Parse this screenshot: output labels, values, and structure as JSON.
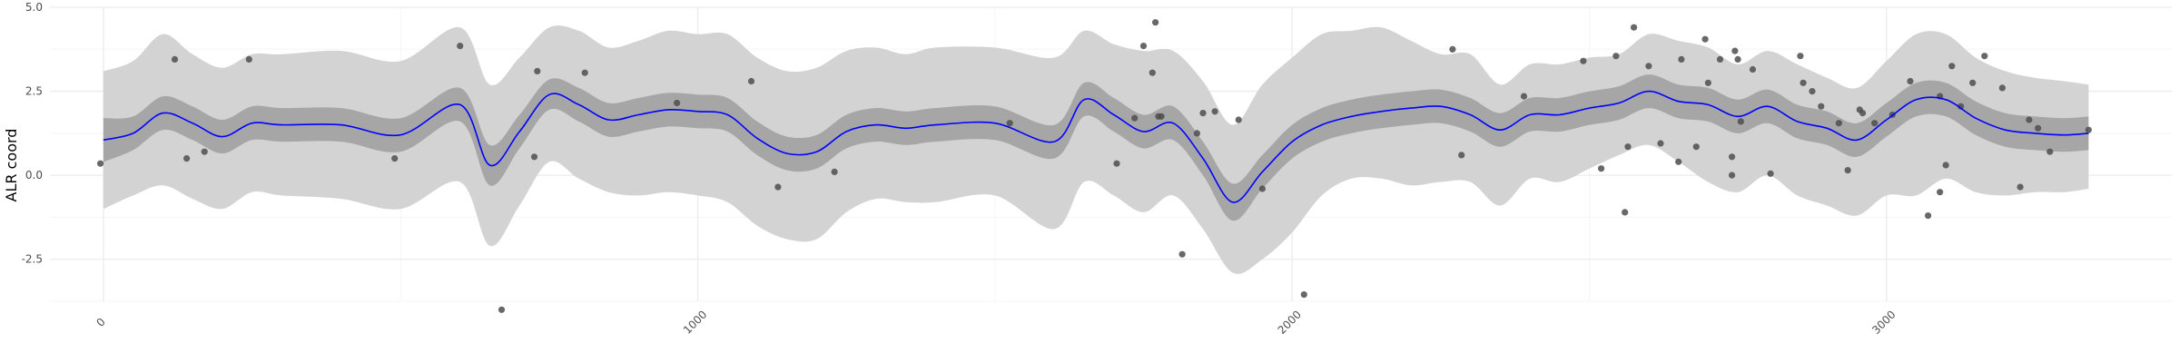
{
  "chart_data": {
    "type": "line",
    "title": "",
    "xlabel": "",
    "ylabel": "ALR coord",
    "xlim": [
      -90,
      3480
    ],
    "ylim": [
      -3.75,
      5.0
    ],
    "x_ticks": [
      0,
      1000,
      2000,
      3000
    ],
    "x_tick_labels": [
      "0",
      "1000",
      "2000",
      "3000"
    ],
    "x_minor_ticks": [
      500,
      1500,
      2500
    ],
    "y_ticks": [
      -2.5,
      0.0,
      2.5,
      5.0
    ],
    "y_tick_labels": [
      "-2.5",
      "0.0",
      "2.5",
      "5.0"
    ],
    "y_minor_ticks": [
      -3.75,
      -1.25,
      1.25,
      3.75
    ],
    "grid": true,
    "colors": {
      "line": "#0000ff",
      "inner_band": "#a6a6a6",
      "outer_band": "#d3d3d3",
      "points": "#4d4d4d",
      "grid_major": "#ebebeb",
      "grid_minor": "#f5f5f5"
    },
    "series": [
      {
        "kind": "mean-line",
        "x": [
          0,
          50,
          100,
          150,
          200,
          250,
          300,
          400,
          500,
          600,
          650,
          700,
          750,
          800,
          850,
          900,
          950,
          1000,
          1050,
          1100,
          1150,
          1200,
          1250,
          1300,
          1350,
          1400,
          1500,
          1600,
          1650,
          1700,
          1750,
          1800,
          1850,
          1900,
          1950,
          2000,
          2050,
          2100,
          2150,
          2200,
          2250,
          2300,
          2350,
          2400,
          2450,
          2500,
          2550,
          2600,
          2650,
          2700,
          2750,
          2800,
          2850,
          2900,
          2950,
          3000,
          3050,
          3100,
          3150,
          3200,
          3250,
          3300,
          3340
        ],
        "y": [
          1.05,
          1.25,
          1.85,
          1.55,
          1.15,
          1.55,
          1.5,
          1.5,
          1.2,
          2.1,
          0.3,
          1.3,
          2.4,
          2.1,
          1.65,
          1.8,
          1.95,
          1.9,
          1.8,
          1.1,
          0.65,
          0.7,
          1.3,
          1.5,
          1.4,
          1.5,
          1.55,
          1.0,
          2.25,
          1.8,
          1.3,
          1.55,
          0.5,
          -0.8,
          0.1,
          1.0,
          1.5,
          1.75,
          1.9,
          2.0,
          2.05,
          1.8,
          1.35,
          1.8,
          1.8,
          2.0,
          2.15,
          2.5,
          2.2,
          2.1,
          1.75,
          2.05,
          1.6,
          1.4,
          1.05,
          1.65,
          2.25,
          2.25,
          1.7,
          1.35,
          1.25,
          1.2,
          1.25
        ]
      },
      {
        "kind": "inner-band",
        "x": [
          0,
          50,
          100,
          150,
          200,
          250,
          300,
          400,
          500,
          600,
          650,
          700,
          750,
          800,
          850,
          900,
          950,
          1000,
          1050,
          1100,
          1150,
          1200,
          1250,
          1300,
          1350,
          1400,
          1500,
          1600,
          1650,
          1700,
          1750,
          1800,
          1850,
          1900,
          1950,
          2000,
          2050,
          2100,
          2150,
          2200,
          2250,
          2300,
          2350,
          2400,
          2450,
          2500,
          2550,
          2600,
          2650,
          2700,
          2750,
          2800,
          2850,
          2900,
          2950,
          3000,
          3050,
          3100,
          3150,
          3200,
          3250,
          3300,
          3340
        ],
        "lower": [
          0.4,
          0.75,
          1.35,
          1.05,
          0.65,
          1.05,
          1.0,
          1.0,
          0.7,
          1.6,
          -0.3,
          0.8,
          1.95,
          1.6,
          1.15,
          1.3,
          1.45,
          1.4,
          1.3,
          0.6,
          0.15,
          0.2,
          0.8,
          1.0,
          0.9,
          1.0,
          1.05,
          0.5,
          1.75,
          1.3,
          0.8,
          1.05,
          0.0,
          -1.35,
          -0.4,
          0.5,
          1.0,
          1.25,
          1.4,
          1.5,
          1.55,
          1.3,
          0.85,
          1.3,
          1.3,
          1.5,
          1.65,
          2.0,
          1.7,
          1.6,
          1.25,
          1.55,
          1.1,
          0.9,
          0.55,
          1.15,
          1.75,
          1.75,
          1.2,
          0.85,
          0.75,
          0.7,
          0.75
        ],
        "upper": [
          1.7,
          1.75,
          2.35,
          2.05,
          1.65,
          2.05,
          2.0,
          2.0,
          1.7,
          2.6,
          0.9,
          1.8,
          2.85,
          2.6,
          2.15,
          2.3,
          2.45,
          2.4,
          2.3,
          1.6,
          1.15,
          1.2,
          1.8,
          2.0,
          1.9,
          2.0,
          2.05,
          1.5,
          2.75,
          2.3,
          1.8,
          2.05,
          1.0,
          -0.25,
          0.6,
          1.5,
          2.0,
          2.25,
          2.4,
          2.5,
          2.55,
          2.3,
          1.85,
          2.3,
          2.3,
          2.5,
          2.65,
          3.0,
          2.7,
          2.6,
          2.25,
          2.55,
          2.1,
          1.9,
          1.55,
          2.15,
          2.75,
          2.75,
          2.2,
          1.85,
          1.75,
          1.7,
          1.75
        ]
      },
      {
        "kind": "outer-band",
        "x": [
          0,
          50,
          100,
          150,
          200,
          250,
          300,
          400,
          500,
          600,
          650,
          700,
          750,
          800,
          850,
          900,
          950,
          1000,
          1050,
          1100,
          1150,
          1200,
          1250,
          1300,
          1350,
          1400,
          1500,
          1600,
          1650,
          1700,
          1750,
          1800,
          1850,
          1900,
          1950,
          2000,
          2050,
          2100,
          2150,
          2200,
          2250,
          2300,
          2350,
          2400,
          2450,
          2500,
          2550,
          2600,
          2650,
          2700,
          2750,
          2800,
          2850,
          2900,
          2950,
          3000,
          3050,
          3100,
          3150,
          3200,
          3250,
          3300,
          3340
        ],
        "lower": [
          -1.0,
          -0.6,
          -0.3,
          -0.7,
          -1.0,
          -0.5,
          -0.6,
          -0.7,
          -1.0,
          -0.2,
          -2.1,
          -0.9,
          0.4,
          -0.1,
          -0.5,
          -0.6,
          -0.5,
          -0.6,
          -0.8,
          -1.5,
          -1.9,
          -1.9,
          -1.1,
          -0.7,
          -0.8,
          -0.8,
          -0.6,
          -1.6,
          -0.2,
          -0.6,
          -1.1,
          -0.6,
          -1.6,
          -2.9,
          -2.5,
          -1.7,
          -0.6,
          -0.1,
          -0.1,
          -0.3,
          -0.2,
          -0.2,
          -0.9,
          -0.1,
          -0.2,
          0.2,
          0.6,
          0.9,
          0.4,
          -0.2,
          -0.5,
          0.0,
          -0.6,
          -0.9,
          -1.2,
          -0.6,
          -0.6,
          -0.1,
          -0.5,
          -0.6,
          -0.5,
          -0.5,
          -0.4
        ],
        "upper": [
          3.1,
          3.4,
          4.2,
          3.6,
          3.2,
          3.6,
          3.6,
          3.7,
          3.4,
          4.4,
          2.7,
          3.5,
          4.4,
          4.3,
          3.8,
          4.0,
          4.3,
          4.2,
          4.2,
          3.5,
          3.1,
          3.2,
          3.7,
          3.8,
          3.6,
          3.8,
          3.8,
          3.5,
          4.3,
          3.9,
          3.7,
          3.7,
          2.8,
          1.5,
          2.7,
          3.5,
          4.2,
          4.3,
          4.4,
          4.0,
          3.6,
          3.6,
          2.7,
          3.3,
          3.3,
          3.5,
          3.6,
          4.2,
          4.0,
          3.8,
          3.3,
          3.7,
          3.3,
          2.9,
          2.6,
          3.4,
          4.2,
          4.2,
          3.5,
          3.1,
          2.9,
          2.8,
          2.7
        ]
      },
      {
        "kind": "observations",
        "x": [
          -5,
          120,
          140,
          170,
          245,
          490,
          600,
          670,
          725,
          730,
          810,
          965,
          1090,
          1135,
          1230,
          1525,
          1705,
          1735,
          1750,
          1765,
          1770,
          1775,
          1780,
          1815,
          1840,
          1850,
          1870,
          1910,
          1950,
          2020,
          2270,
          2285,
          2390,
          2490,
          2520,
          2545,
          2560,
          2565,
          2575,
          2600,
          2620,
          2650,
          2655,
          2680,
          2695,
          2700,
          2720,
          2740,
          2740,
          2745,
          2750,
          2755,
          2775,
          2805,
          2855,
          2860,
          2875,
          2890,
          2920,
          2935,
          2955,
          2960,
          2980,
          3010,
          3040,
          3070,
          3090,
          3090,
          3100,
          3110,
          3125,
          3145,
          3165,
          3195,
          3225,
          3240,
          3255,
          3275,
          3340
        ],
        "y": [
          0.35,
          3.45,
          0.5,
          0.7,
          3.45,
          0.5,
          3.85,
          -4.0,
          0.55,
          3.1,
          3.05,
          2.15,
          2.8,
          -0.35,
          0.1,
          1.55,
          0.35,
          1.7,
          3.85,
          3.05,
          4.55,
          1.75,
          1.75,
          -2.35,
          1.25,
          1.85,
          1.9,
          1.65,
          -0.4,
          -3.55,
          3.75,
          0.6,
          2.35,
          3.4,
          0.2,
          3.55,
          -1.1,
          0.85,
          4.4,
          3.25,
          0.95,
          0.4,
          3.45,
          0.85,
          4.05,
          2.75,
          3.45,
          0.55,
          0.0,
          3.7,
          3.45,
          1.6,
          3.15,
          0.05,
          3.55,
          2.75,
          2.5,
          2.05,
          1.55,
          0.15,
          1.95,
          1.85,
          1.55,
          1.8,
          2.8,
          -1.2,
          2.35,
          -0.5,
          0.3,
          3.25,
          2.05,
          2.75,
          3.55,
          2.6,
          -0.35,
          1.65,
          1.4,
          0.7,
          1.35
        ]
      }
    ]
  }
}
